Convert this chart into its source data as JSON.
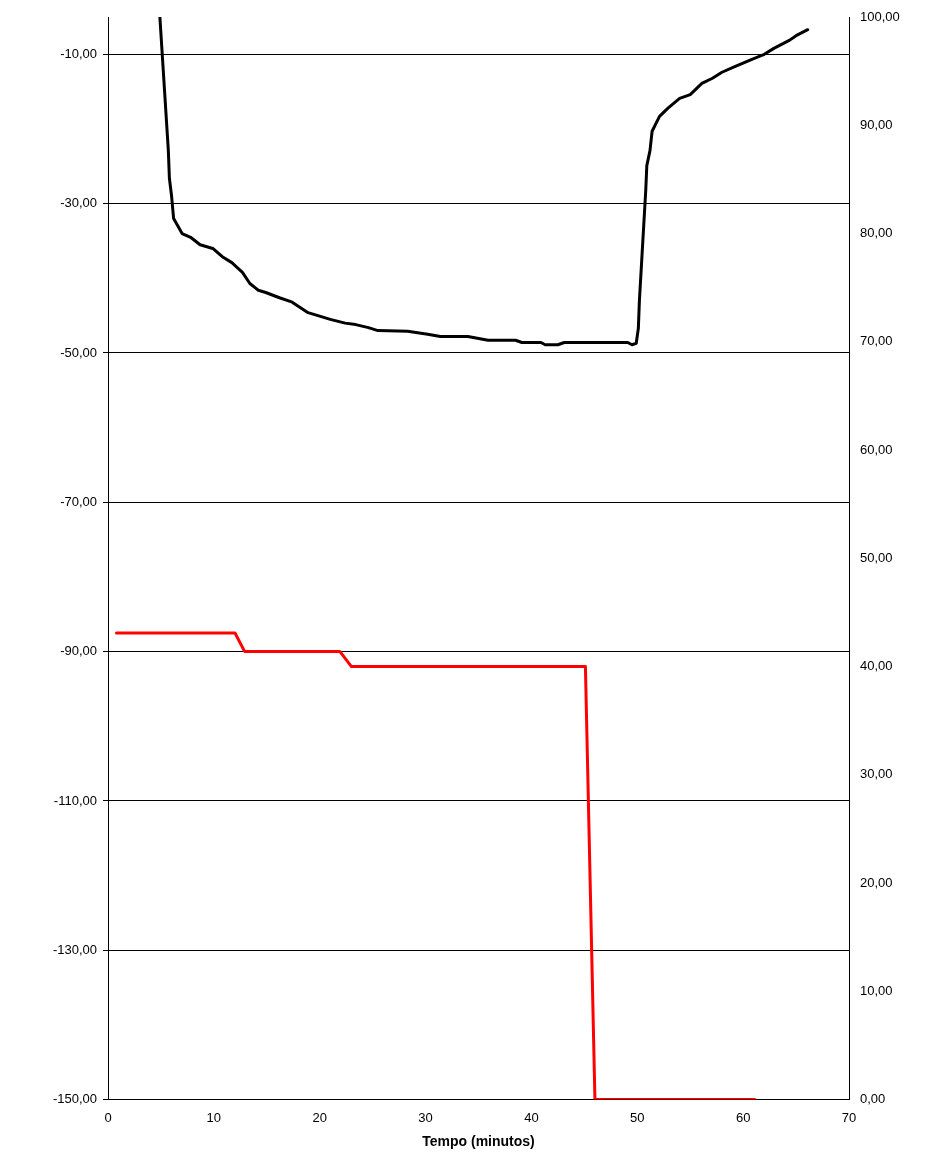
{
  "chart_data": {
    "type": "line",
    "xlabel": "Tempo (minutos)",
    "xlim": [
      0,
      70
    ],
    "xticks": [
      0,
      10,
      20,
      30,
      40,
      50,
      60,
      70
    ],
    "ylim": [
      -150,
      -5
    ],
    "yticks": [
      {
        "value": -150,
        "label": "-150,00"
      },
      {
        "value": -130,
        "label": "-130,00"
      },
      {
        "value": -110,
        "label": "-110,00"
      },
      {
        "value": -90,
        "label": "-90,00"
      },
      {
        "value": -70,
        "label": "-70,00"
      },
      {
        "value": -50,
        "label": "-50,00"
      },
      {
        "value": -30,
        "label": "-30,00"
      },
      {
        "value": -10,
        "label": "-10,00"
      }
    ],
    "y2lim": [
      0,
      100
    ],
    "y2ticks": [
      {
        "value": 0,
        "label": "0,00"
      },
      {
        "value": 10,
        "label": "10,00"
      },
      {
        "value": 20,
        "label": "20,00"
      },
      {
        "value": 30,
        "label": "30,00"
      },
      {
        "value": 40,
        "label": "40,00"
      },
      {
        "value": 50,
        "label": "50,00"
      },
      {
        "value": 60,
        "label": "60,00"
      },
      {
        "value": 70,
        "label": "70,00"
      },
      {
        "value": 80,
        "label": "80,00"
      },
      {
        "value": 90,
        "label": "90,00"
      },
      {
        "value": 100,
        "label": "100,00"
      }
    ],
    "grid": "y",
    "legend": false,
    "marker": "none",
    "line_style": "solid",
    "series": [
      {
        "color": "#000000",
        "x": [
          4.9,
          5.7,
          5.8,
          6.0,
          6.2,
          7.0,
          7.8,
          8.7,
          9.9,
          10.8,
          11.7,
          12.7,
          13.4,
          14.2,
          14.9,
          16.2,
          17.4,
          18.9,
          21.0,
          22.4,
          23.4,
          24.6,
          25.5,
          28.3,
          30.2,
          31.4,
          34.0,
          35.9,
          38.5,
          39.1,
          40.9,
          41.3,
          42.5,
          43.1,
          49.1,
          49.5,
          49.9,
          50.1,
          50.2,
          50.8,
          50.9,
          51.2,
          51.4,
          52.1,
          52.9,
          54.0,
          55.0,
          56.1,
          57.1,
          58.0,
          59.1,
          60.6,
          62.0,
          62.9,
          64.4,
          65.0,
          66.1
        ],
        "values": [
          -5.0,
          -22.9,
          -26.6,
          -28.9,
          -32.0,
          -34.0,
          -34.5,
          -35.5,
          -36.0,
          -37.1,
          -37.9,
          -39.2,
          -40.7,
          -41.6,
          -41.9,
          -42.6,
          -43.2,
          -44.6,
          -45.5,
          -46.0,
          -46.2,
          -46.6,
          -47.0,
          -47.1,
          -47.5,
          -47.8,
          -47.8,
          -48.3,
          -48.3,
          -48.6,
          -48.6,
          -48.9,
          -48.9,
          -48.6,
          -48.6,
          -48.9,
          -48.7,
          -46.7,
          -43.0,
          -28.2,
          -24.9,
          -22.9,
          -20.3,
          -18.3,
          -17.2,
          -15.9,
          -15.4,
          -13.9,
          -13.2,
          -12.4,
          -11.7,
          -10.8,
          -10.0,
          -9.2,
          -8.1,
          -7.5,
          -6.7
        ]
      },
      {
        "color": "#ff0000",
        "axis": "y2",
        "x": [
          0.8,
          12.0,
          12.9,
          21.9,
          23.0,
          45.1,
          46.0,
          61.1
        ],
        "values": [
          43.1,
          43.1,
          41.4,
          41.4,
          40.0,
          40.0,
          0,
          0
        ]
      }
    ]
  }
}
